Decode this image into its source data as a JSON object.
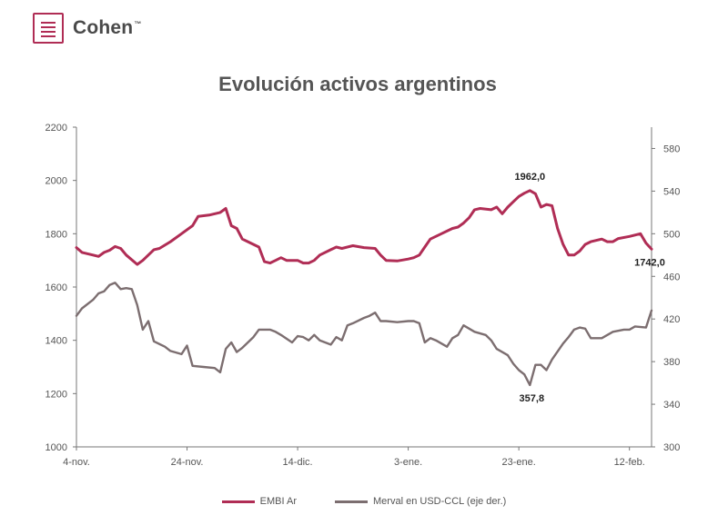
{
  "brand": {
    "name": "Cohen",
    "tm": "™"
  },
  "title": "Evolución activos argentinos",
  "colors": {
    "embi": "#b02d55",
    "merval": "#7c6e70",
    "axis": "#777777"
  },
  "chart_data": {
    "type": "line",
    "title": "Evolución activos argentinos",
    "x": {
      "ticks": [
        "4-nov.",
        "24-nov.",
        "14-dic.",
        "3-ene.",
        "23-ene.",
        "12-feb."
      ],
      "tick_positions": [
        0,
        20,
        40,
        60,
        80,
        100
      ],
      "range": [
        0,
        104
      ]
    },
    "y_left": {
      "range": [
        1000,
        2200
      ],
      "ticks": [
        1000,
        1200,
        1400,
        1600,
        1800,
        2000,
        2200
      ]
    },
    "y_right": {
      "range": [
        300,
        600
      ],
      "ticks": [
        300,
        340,
        380,
        420,
        460,
        500,
        540,
        580
      ]
    },
    "series": [
      {
        "name": "EMBI Ar",
        "axis": "left",
        "color": "#b02d55",
        "points": [
          [
            0,
            1748
          ],
          [
            1,
            1730
          ],
          [
            3,
            1720
          ],
          [
            4,
            1715
          ],
          [
            5,
            1730
          ],
          [
            6,
            1738
          ],
          [
            7,
            1752
          ],
          [
            8,
            1745
          ],
          [
            9,
            1720
          ],
          [
            11,
            1685
          ],
          [
            12,
            1700
          ],
          [
            13,
            1720
          ],
          [
            14,
            1740
          ],
          [
            15,
            1745
          ],
          [
            17,
            1770
          ],
          [
            19,
            1800
          ],
          [
            20,
            1815
          ],
          [
            21,
            1830
          ],
          [
            22,
            1865
          ],
          [
            24,
            1870
          ],
          [
            26,
            1880
          ],
          [
            27,
            1895
          ],
          [
            28,
            1830
          ],
          [
            29,
            1820
          ],
          [
            30,
            1780
          ],
          [
            31,
            1770
          ],
          [
            33,
            1750
          ],
          [
            34,
            1695
          ],
          [
            35,
            1690
          ],
          [
            36,
            1700
          ],
          [
            37,
            1710
          ],
          [
            38,
            1700
          ],
          [
            40,
            1700
          ],
          [
            41,
            1690
          ],
          [
            42,
            1690
          ],
          [
            43,
            1700
          ],
          [
            44,
            1720
          ],
          [
            46,
            1740
          ],
          [
            47,
            1750
          ],
          [
            48,
            1745
          ],
          [
            50,
            1755
          ],
          [
            52,
            1748
          ],
          [
            54,
            1745
          ],
          [
            55,
            1720
          ],
          [
            56,
            1700
          ],
          [
            58,
            1698
          ],
          [
            60,
            1705
          ],
          [
            61,
            1710
          ],
          [
            62,
            1720
          ],
          [
            63,
            1750
          ],
          [
            64,
            1780
          ],
          [
            66,
            1800
          ],
          [
            68,
            1820
          ],
          [
            69,
            1825
          ],
          [
            70,
            1840
          ],
          [
            71,
            1860
          ],
          [
            72,
            1890
          ],
          [
            73,
            1895
          ],
          [
            75,
            1890
          ],
          [
            76,
            1900
          ],
          [
            77,
            1875
          ],
          [
            78,
            1900
          ],
          [
            79,
            1920
          ],
          [
            80,
            1940
          ],
          [
            81,
            1952
          ],
          [
            82,
            1962
          ],
          [
            83,
            1950
          ],
          [
            84,
            1900
          ],
          [
            85,
            1910
          ],
          [
            86,
            1905
          ],
          [
            87,
            1820
          ],
          [
            88,
            1760
          ],
          [
            89,
            1720
          ],
          [
            90,
            1720
          ],
          [
            91,
            1735
          ],
          [
            92,
            1760
          ],
          [
            93,
            1770
          ],
          [
            95,
            1780
          ],
          [
            96,
            1770
          ],
          [
            97,
            1770
          ],
          [
            98,
            1782
          ],
          [
            100,
            1790
          ],
          [
            102,
            1800
          ],
          [
            103,
            1765
          ],
          [
            104,
            1742
          ]
        ]
      },
      {
        "name": "Merval en USD-CCL (eje der.)",
        "axis": "right",
        "color": "#7c6e70",
        "points": [
          [
            0,
            423
          ],
          [
            1,
            430
          ],
          [
            3,
            438
          ],
          [
            4,
            444
          ],
          [
            5,
            446
          ],
          [
            6,
            452
          ],
          [
            7,
            454
          ],
          [
            8,
            448
          ],
          [
            9,
            449
          ],
          [
            10,
            448
          ],
          [
            11,
            433
          ],
          [
            12,
            410
          ],
          [
            13,
            418
          ],
          [
            14,
            399
          ],
          [
            16,
            394
          ],
          [
            17,
            390
          ],
          [
            19,
            387
          ],
          [
            20,
            395
          ],
          [
            21,
            376
          ],
          [
            23,
            375
          ],
          [
            25,
            374
          ],
          [
            26,
            370
          ],
          [
            27,
            392
          ],
          [
            28,
            398
          ],
          [
            29,
            389
          ],
          [
            30,
            393
          ],
          [
            32,
            403
          ],
          [
            33,
            410
          ],
          [
            35,
            410
          ],
          [
            36,
            408
          ],
          [
            37,
            405
          ],
          [
            39,
            398
          ],
          [
            40,
            404
          ],
          [
            41,
            403
          ],
          [
            42,
            400
          ],
          [
            43,
            405
          ],
          [
            44,
            400
          ],
          [
            46,
            396
          ],
          [
            47,
            403
          ],
          [
            48,
            400
          ],
          [
            49,
            414
          ],
          [
            50,
            416
          ],
          [
            52,
            421
          ],
          [
            53,
            423
          ],
          [
            54,
            426
          ],
          [
            55,
            418
          ],
          [
            56,
            418
          ],
          [
            58,
            417
          ],
          [
            60,
            418
          ],
          [
            61,
            418
          ],
          [
            62,
            416
          ],
          [
            63,
            398
          ],
          [
            64,
            402
          ],
          [
            65,
            400
          ],
          [
            67,
            394
          ],
          [
            68,
            402
          ],
          [
            69,
            405
          ],
          [
            70,
            414
          ],
          [
            72,
            408
          ],
          [
            74,
            405
          ],
          [
            75,
            400
          ],
          [
            76,
            392
          ],
          [
            78,
            386
          ],
          [
            79,
            378
          ],
          [
            80,
            372
          ],
          [
            81,
            368
          ],
          [
            82,
            358
          ],
          [
            83,
            377
          ],
          [
            84,
            377
          ],
          [
            85,
            372
          ],
          [
            86,
            382
          ],
          [
            88,
            397
          ],
          [
            89,
            403
          ],
          [
            90,
            410
          ],
          [
            91,
            412
          ],
          [
            92,
            411
          ],
          [
            93,
            402
          ],
          [
            95,
            402
          ],
          [
            97,
            408
          ],
          [
            99,
            410
          ],
          [
            100,
            410
          ],
          [
            101,
            413
          ],
          [
            103,
            412
          ],
          [
            104,
            428
          ]
        ]
      }
    ],
    "annotations": [
      {
        "text": "1962,0",
        "series": "EMBI Ar",
        "x": 82,
        "y": 1962
      },
      {
        "text": "1742,0",
        "series": "EMBI Ar",
        "x": 104,
        "y": 1742
      },
      {
        "text": "357,8",
        "series": "Merval en USD-CCL (eje der.)",
        "x": 82,
        "y": 357.8
      }
    ],
    "legend": [
      "EMBI Ar",
      "Merval en USD-CCL (eje der.)"
    ],
    "legend_position": "bottom",
    "grid": false
  }
}
